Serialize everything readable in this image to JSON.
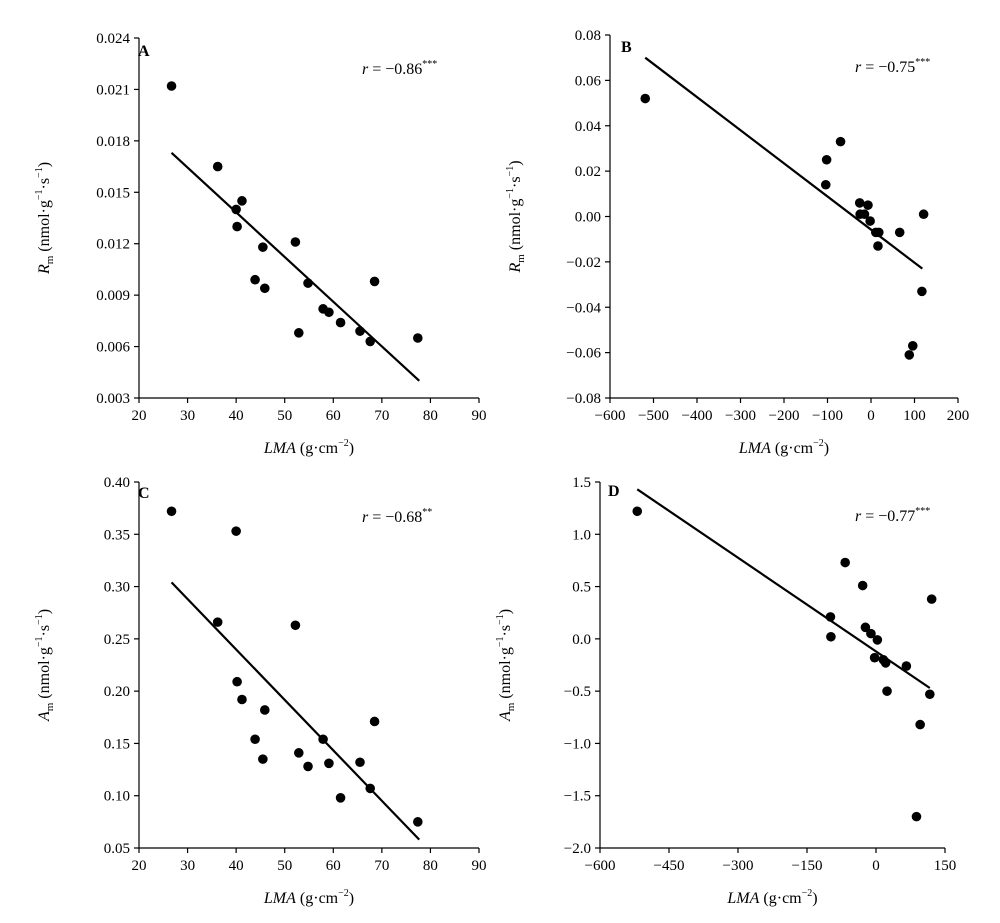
{
  "chart_data": [
    {
      "type": "scatter",
      "panel": "A",
      "r_value": "= −0.86",
      "significance": "***",
      "xlabel": "LMA (g·cm−2)",
      "ylabel": "Rm (nmol·g−1·s−1)",
      "xlabel_parts": {
        "italic": "LMA",
        "unit": " (g·cm",
        "unit_sup": "−2",
        "close": ")"
      },
      "ylabel_parts": {
        "italic": "R",
        "sub": "m",
        "unit": " (nmol·g",
        "sup1": "−1",
        "mid": "·s",
        "sup2": "−1",
        "close": ")"
      },
      "xlim": [
        20,
        90
      ],
      "ylim": [
        0.003,
        0.024
      ],
      "xticks": [
        "20",
        "30",
        "40",
        "50",
        "60",
        "70",
        "80",
        "90"
      ],
      "yticks": [
        "0.003",
        "0.006",
        "0.009",
        "0.012",
        "0.015",
        "0.018",
        "0.021",
        "0.024"
      ],
      "points": [
        [
          26.7,
          0.0212
        ],
        [
          36.2,
          0.0165
        ],
        [
          40.0,
          0.014
        ],
        [
          40.2,
          0.013
        ],
        [
          41.2,
          0.0145
        ],
        [
          43.9,
          0.0099
        ],
        [
          45.5,
          0.0118
        ],
        [
          45.9,
          0.0094
        ],
        [
          52.2,
          0.0121
        ],
        [
          52.9,
          0.0068
        ],
        [
          54.8,
          0.0097
        ],
        [
          57.9,
          0.0082
        ],
        [
          59.1,
          0.008
        ],
        [
          61.5,
          0.0074
        ],
        [
          65.5,
          0.0069
        ],
        [
          67.6,
          0.0063
        ],
        [
          68.5,
          0.0098
        ],
        [
          77.4,
          0.0065
        ]
      ],
      "fit_line": [
        [
          26.7,
          0.0173
        ],
        [
          77.7,
          0.004
        ]
      ]
    },
    {
      "type": "scatter",
      "panel": "B",
      "r_value": "= −0.75",
      "significance": "***",
      "xlabel": "LMA (g·cm−2)",
      "ylabel": "Rm (nmol·g−1·s−1)",
      "xlabel_parts": {
        "italic": "LMA",
        "unit": " (g·cm",
        "unit_sup": "−2",
        "close": ")"
      },
      "ylabel_parts": {
        "italic": "R",
        "sub": "m",
        "unit": " (nmol·g",
        "sup1": "−1",
        "mid": "·s",
        "sup2": "−1",
        "close": ")"
      },
      "xlim": [
        -600,
        200
      ],
      "ylim": [
        -0.08,
        0.08
      ],
      "xticks": [
        "−600",
        "−500",
        "−400",
        "−300",
        "−200",
        "−100",
        "0",
        "100",
        "200"
      ],
      "yticks": [
        "−0.08",
        "−0.06",
        "−0.04",
        "−0.02",
        "0.00",
        "0.02",
        "0.04",
        "0.06",
        "0.08"
      ],
      "points": [
        [
          -519,
          0.052
        ],
        [
          -102,
          0.025
        ],
        [
          -104,
          0.014
        ],
        [
          -70,
          0.033
        ],
        [
          -26,
          0.006
        ],
        [
          -25,
          0.001
        ],
        [
          -15,
          0.001
        ],
        [
          -7,
          0.005
        ],
        [
          -2,
          -0.002
        ],
        [
          11,
          -0.007
        ],
        [
          18,
          -0.007
        ],
        [
          16,
          -0.013
        ],
        [
          66,
          -0.007
        ],
        [
          121,
          0.001
        ],
        [
          117,
          -0.033
        ],
        [
          96,
          -0.057
        ],
        [
          88,
          -0.061
        ]
      ],
      "fit_line": [
        [
          -519,
          0.07
        ],
        [
          118,
          -0.023
        ]
      ]
    },
    {
      "type": "scatter",
      "panel": "C",
      "r_value": "= −0.68",
      "significance": "**",
      "xlabel": "LMA (g·cm−2)",
      "ylabel": "Am (nmol·g−1·s−1)",
      "xlabel_parts": {
        "italic": "LMA",
        "unit": " (g·cm",
        "unit_sup": "−2",
        "close": ")"
      },
      "ylabel_parts": {
        "italic": "A",
        "sub": "m",
        "unit": " (nmol·g",
        "sup1": "−1",
        "mid": "·s",
        "sup2": "−1",
        "close": ")"
      },
      "xlim": [
        20,
        90
      ],
      "ylim": [
        0.05,
        0.4
      ],
      "xticks": [
        "20",
        "30",
        "40",
        "50",
        "60",
        "70",
        "80",
        "90"
      ],
      "yticks": [
        "0.05",
        "0.10",
        "0.15",
        "0.20",
        "0.25",
        "0.30",
        "0.35",
        "0.40"
      ],
      "points": [
        [
          26.7,
          0.372
        ],
        [
          36.2,
          0.266
        ],
        [
          40.0,
          0.353
        ],
        [
          40.2,
          0.209
        ],
        [
          41.2,
          0.192
        ],
        [
          43.9,
          0.154
        ],
        [
          45.5,
          0.135
        ],
        [
          45.9,
          0.182
        ],
        [
          52.2,
          0.263
        ],
        [
          52.9,
          0.141
        ],
        [
          54.8,
          0.128
        ],
        [
          57.9,
          0.154
        ],
        [
          59.1,
          0.131
        ],
        [
          61.5,
          0.098
        ],
        [
          65.5,
          0.132
        ],
        [
          67.6,
          0.107
        ],
        [
          68.5,
          0.171
        ],
        [
          77.4,
          0.075
        ]
      ],
      "fit_line": [
        [
          26.7,
          0.304
        ],
        [
          77.7,
          0.058
        ]
      ]
    },
    {
      "type": "scatter",
      "panel": "D",
      "r_value": "= −0.77",
      "significance": "***",
      "xlabel": "LMA (g·cm−2)",
      "ylabel": "Am (nmol·g−1·s−1)",
      "xlabel_parts": {
        "italic": "LMA",
        "unit": " (g·cm",
        "unit_sup": "−2",
        "close": ")"
      },
      "ylabel_parts": {
        "italic": "A",
        "sub": "m",
        "unit": " (nmol·g",
        "sup1": "−1",
        "mid": "·s",
        "sup2": "−1",
        "close": ")"
      },
      "xlim": [
        -600,
        150
      ],
      "ylim": [
        -2.0,
        1.5
      ],
      "xticks": [
        "−600",
        "−450",
        "−300",
        "−150",
        "0",
        "150"
      ],
      "yticks": [
        "−2.0",
        "−1.5",
        "−1.0",
        "−0.5",
        "0.0",
        "0.5",
        "1.0",
        "1.5"
      ],
      "points": [
        [
          -519,
          1.22
        ],
        [
          -99,
          0.21
        ],
        [
          -98,
          0.02
        ],
        [
          -67,
          0.73
        ],
        [
          -29,
          0.51
        ],
        [
          -23,
          0.11
        ],
        [
          -11,
          0.05
        ],
        [
          -3,
          -0.18
        ],
        [
          3,
          -0.01
        ],
        [
          16,
          -0.2
        ],
        [
          24,
          -0.5
        ],
        [
          21,
          -0.23
        ],
        [
          66,
          -0.26
        ],
        [
          121,
          0.38
        ],
        [
          117,
          -0.53
        ],
        [
          96,
          -0.82
        ],
        [
          88,
          -1.7
        ]
      ],
      "fit_line": [
        [
          -519,
          1.43
        ],
        [
          117,
          -0.47
        ]
      ]
    }
  ]
}
